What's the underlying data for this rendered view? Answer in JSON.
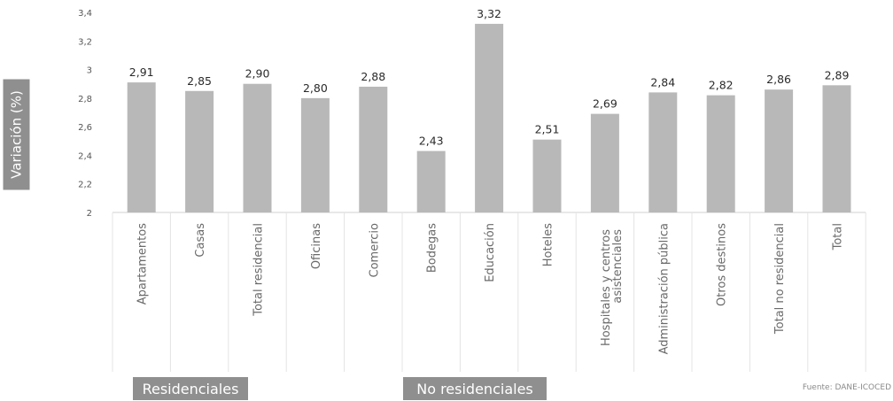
{
  "chart_data": {
    "type": "bar",
    "ylabel": "Variación (%)",
    "ylim": [
      2,
      3.4
    ],
    "y_ticks": [
      "2",
      "2,2",
      "2,4",
      "2,6",
      "2,8",
      "3",
      "3,2",
      "3,4"
    ],
    "grid": false,
    "categories": [
      "Apartamentos",
      "Casas",
      "Total residencial",
      "Oficinas",
      "Comercio",
      "Bodegas",
      "Educación",
      "Hoteles",
      "Hospitales y centros asistenciales",
      "Administración pública",
      "Otros destinos",
      "Total no residencial",
      "Total"
    ],
    "values": [
      2.91,
      2.85,
      2.9,
      2.8,
      2.88,
      2.43,
      3.32,
      2.51,
      2.69,
      2.84,
      2.82,
      2.86,
      2.89
    ],
    "value_labels": [
      "2,91",
      "2,85",
      "2,90",
      "2,80",
      "2,88",
      "2,43",
      "3,32",
      "2,51",
      "2,69",
      "2,84",
      "2,82",
      "2,86",
      "2,89"
    ],
    "groups": [
      {
        "label": "Residenciales"
      },
      {
        "label": "No residenciales"
      }
    ],
    "source": "Fuente: DANE-ICOCED",
    "colors": {
      "bar": "#b8b8b8",
      "label_box": "#8f8f8f"
    }
  }
}
